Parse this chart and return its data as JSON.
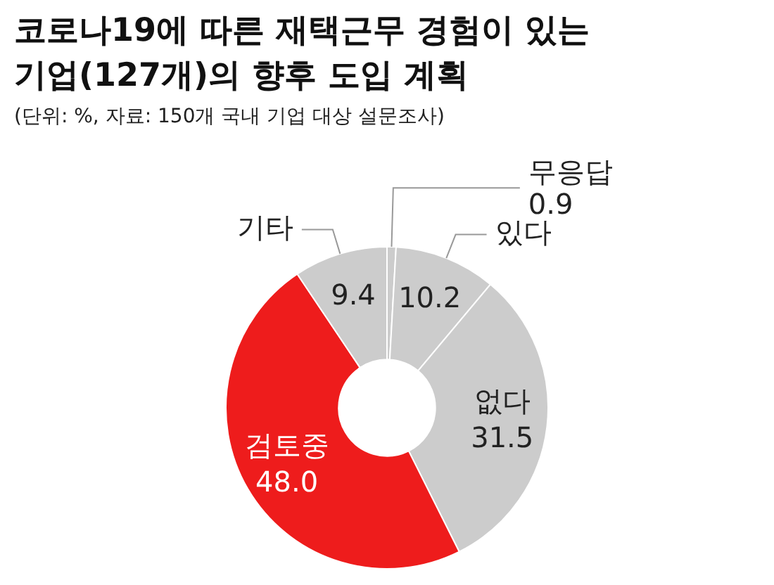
{
  "chart_data": {
    "type": "donut",
    "title": "코로나19에 따른 재택근무 경험이 있는 기업(127개)의 향후 도입 계획",
    "subtitle": "(단위: %, 자료: 150개 국내 기업 대상 설문조사)",
    "categories": [
      "무응답",
      "있다",
      "없다",
      "검토중",
      "기타"
    ],
    "values": [
      0.9,
      10.2,
      31.5,
      48.0,
      9.4
    ],
    "colors": [
      "#cccccc",
      "#cccccc",
      "#cccccc",
      "#ee1c1c",
      "#cccccc"
    ],
    "value_labels": [
      "0.9",
      "10.2",
      "31.5",
      "48.0",
      "9.4"
    ],
    "legend": false
  }
}
